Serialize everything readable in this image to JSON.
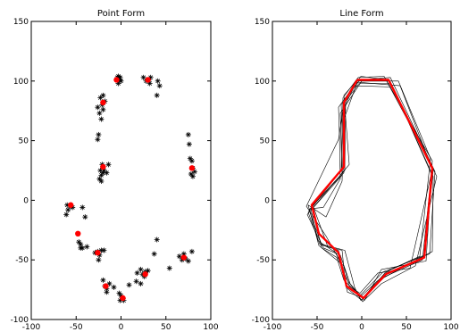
{
  "chart_data": [
    {
      "type": "scatter",
      "title": "Point Form",
      "xlabel": "",
      "ylabel": "",
      "xlim": [
        -100,
        100
      ],
      "ylim": [
        -100,
        150
      ],
      "xticks": [
        -100,
        -50,
        0,
        50,
        100
      ],
      "yticks": [
        -100,
        -50,
        0,
        50,
        100,
        150
      ],
      "grid": false,
      "colors": {
        "samples": "#000000",
        "mean": "#ff0000"
      },
      "series": [
        {
          "marker": "asterisk",
          "points": [
            [
              -3,
              104
            ],
            [
              -2,
              101
            ],
            [
              -1,
              103
            ],
            [
              0,
              100
            ],
            [
              -3,
              98
            ],
            [
              -4,
              103
            ],
            [
              25,
              103
            ],
            [
              28,
              100
            ],
            [
              31,
              101
            ],
            [
              33,
              103
            ],
            [
              32,
              98
            ],
            [
              41,
              100
            ],
            [
              43,
              96
            ],
            [
              40,
              88
            ],
            [
              -20,
              88
            ],
            [
              -23,
              86
            ],
            [
              -18,
              83
            ],
            [
              -21,
              80
            ],
            [
              -20,
              76
            ],
            [
              -26,
              78
            ],
            [
              -24,
              73
            ],
            [
              -22,
              68
            ],
            [
              -25,
              55
            ],
            [
              -26,
              51
            ],
            [
              -21,
              30
            ],
            [
              -23,
              25
            ],
            [
              -20,
              23
            ],
            [
              -22,
              21
            ],
            [
              -19,
              25
            ],
            [
              -16,
              23
            ],
            [
              -14,
              30
            ],
            [
              -22,
              16
            ],
            [
              -24,
              18
            ],
            [
              -60,
              -4
            ],
            [
              -56,
              -5
            ],
            [
              -59,
              -8
            ],
            [
              -61,
              -12
            ],
            [
              -54,
              -6
            ],
            [
              -43,
              -6
            ],
            [
              -40,
              -14
            ],
            [
              -47,
              -35
            ],
            [
              -45,
              -37
            ],
            [
              -43,
              -40
            ],
            [
              -38,
              -39
            ],
            [
              -45,
              -40
            ],
            [
              -29,
              -44
            ],
            [
              -26,
              -43
            ],
            [
              -24,
              -46
            ],
            [
              -22,
              -42
            ],
            [
              -19,
              -42
            ],
            [
              -25,
              -50
            ],
            [
              -20,
              -67
            ],
            [
              -18,
              -72
            ],
            [
              -16,
              -74
            ],
            [
              -13,
              -70
            ],
            [
              -16,
              -77
            ],
            [
              -8,
              -73
            ],
            [
              -2,
              -78
            ],
            [
              0,
              -80
            ],
            [
              2,
              -82
            ],
            [
              -1,
              -84
            ],
            [
              3,
              -84
            ],
            [
              9,
              -71
            ],
            [
              18,
              -61
            ],
            [
              22,
              -58
            ],
            [
              24,
              -62
            ],
            [
              27,
              -60
            ],
            [
              26,
              -64
            ],
            [
              22,
              -70
            ],
            [
              17,
              -68
            ],
            [
              30,
              -59
            ],
            [
              40,
              -33
            ],
            [
              37,
              -45
            ],
            [
              54,
              -57
            ],
            [
              65,
              -47
            ],
            [
              70,
              -45
            ],
            [
              68,
              -50
            ],
            [
              72,
              -49
            ],
            [
              75,
              -51
            ],
            [
              79,
              -43
            ],
            [
              75,
              55
            ],
            [
              76,
              47
            ],
            [
              77,
              35
            ],
            [
              79,
              33
            ],
            [
              80,
              27
            ],
            [
              78,
              22
            ],
            [
              82,
              24
            ],
            [
              80,
              20
            ]
          ]
        },
        {
          "marker": "dot",
          "points": [
            [
              -5,
              101
            ],
            [
              30,
              101
            ],
            [
              -20,
              82
            ],
            [
              -20,
              28
            ],
            [
              -56,
              -4
            ],
            [
              -48,
              -28
            ],
            [
              -26,
              -44
            ],
            [
              -17,
              -72
            ],
            [
              2,
              -82
            ],
            [
              27,
              -62
            ],
            [
              70,
              -48
            ],
            [
              79,
              27
            ]
          ]
        }
      ]
    },
    {
      "type": "line",
      "title": "Line Form",
      "xlabel": "",
      "ylabel": "",
      "xlim": [
        -100,
        100
      ],
      "ylim": [
        -100,
        150
      ],
      "xticks": [
        -100,
        -50,
        0,
        50,
        100
      ],
      "yticks": [
        -100,
        -50,
        0,
        50,
        100,
        150
      ],
      "grid": false,
      "colors": {
        "samples": "#000000",
        "mean": "#ff0000"
      },
      "series": [
        {
          "role": "sample",
          "points": [
            [
              -4,
              103
            ],
            [
              25,
              104
            ],
            [
              78,
              30
            ],
            [
              80,
              25
            ],
            [
              70,
              -46
            ],
            [
              27,
              -60
            ],
            [
              0,
              -84
            ],
            [
              -16,
              -74
            ],
            [
              -26,
              -42
            ],
            [
              -47,
              -37
            ],
            [
              -60,
              -10
            ],
            [
              -23,
              25
            ],
            [
              -21,
              86
            ],
            [
              -4,
              103
            ]
          ]
        },
        {
          "role": "sample",
          "points": [
            [
              -2,
              101
            ],
            [
              32,
              103
            ],
            [
              82,
              24
            ],
            [
              76,
              -45
            ],
            [
              24,
              -60
            ],
            [
              -2,
              -80
            ],
            [
              -20,
              -67
            ],
            [
              -28,
              -48
            ],
            [
              -45,
              -40
            ],
            [
              -56,
              -5
            ],
            [
              -20,
              23
            ],
            [
              -23,
              80
            ],
            [
              -2,
              101
            ]
          ]
        },
        {
          "role": "sample",
          "points": [
            [
              -6,
              100
            ],
            [
              28,
              100
            ],
            [
              79,
              33
            ],
            [
              72,
              -51
            ],
            [
              22,
              -58
            ],
            [
              3,
              -84
            ],
            [
              -13,
              -70
            ],
            [
              -24,
              -46
            ],
            [
              -43,
              -40
            ],
            [
              -61,
              -12
            ],
            [
              -14,
              30
            ],
            [
              -20,
              88
            ],
            [
              -6,
              100
            ]
          ]
        },
        {
          "role": "sample",
          "points": [
            [
              0,
              100
            ],
            [
              41,
              100
            ],
            [
              77,
              35
            ],
            [
              65,
              -47
            ],
            [
              30,
              -59
            ],
            [
              0,
              -80
            ],
            [
              -18,
              -72
            ],
            [
              -22,
              -42
            ],
            [
              -38,
              -39
            ],
            [
              -54,
              -6
            ],
            [
              -22,
              21
            ],
            [
              -24,
              73
            ],
            [
              0,
              100
            ]
          ]
        },
        {
          "role": "sample",
          "points": [
            [
              -3,
              98
            ],
            [
              33,
              98
            ],
            [
              80,
              20
            ],
            [
              79,
              -43
            ],
            [
              17,
              -68
            ],
            [
              -1,
              -84
            ],
            [
              -8,
              -73
            ],
            [
              -19,
              -42
            ],
            [
              -45,
              -37
            ],
            [
              -59,
              -8
            ],
            [
              -19,
              25
            ],
            [
              -18,
              83
            ],
            [
              -3,
              98
            ]
          ]
        },
        {
          "role": "sample",
          "points": [
            [
              -8,
              96
            ],
            [
              35,
              95
            ],
            [
              78,
              22
            ],
            [
              68,
              -50
            ],
            [
              26,
              -64
            ],
            [
              2,
              -82
            ],
            [
              -16,
              -77
            ],
            [
              -25,
              -50
            ],
            [
              -40,
              -30
            ],
            [
              -62,
              -5
            ],
            [
              -26,
              51
            ],
            [
              -21,
              76
            ],
            [
              -8,
              96
            ]
          ]
        },
        {
          "role": "sample",
          "points": [
            [
              -1,
              104
            ],
            [
              31,
              101
            ],
            [
              84,
              20
            ],
            [
              60,
              -55
            ],
            [
              22,
              -70
            ],
            [
              1,
              -85
            ],
            [
              -17,
              -66
            ],
            [
              -29,
              -44
            ],
            [
              -49,
              -34
            ],
            [
              -57,
              -7
            ],
            [
              -43,
              -6
            ],
            [
              -24,
              18
            ],
            [
              -25,
              55
            ],
            [
              -26,
              78
            ],
            [
              -1,
              104
            ]
          ]
        },
        {
          "role": "sample",
          "points": [
            [
              -5,
              99
            ],
            [
              43,
              96
            ],
            [
              79,
              26
            ],
            [
              54,
              -57
            ],
            [
              18,
              -61
            ],
            [
              -2,
              -78
            ],
            [
              -14,
              -72
            ],
            [
              -20,
              -55
            ],
            [
              -48,
              -38
            ],
            [
              -60,
              -4
            ],
            [
              -40,
              -14
            ],
            [
              -22,
              16
            ],
            [
              -20,
              68
            ],
            [
              -5,
              99
            ]
          ]
        },
        {
          "role": "mean",
          "points": [
            [
              -5,
              101
            ],
            [
              30,
              101
            ],
            [
              79,
              27
            ],
            [
              70,
              -48
            ],
            [
              27,
              -62
            ],
            [
              2,
              -82
            ],
            [
              -17,
              -72
            ],
            [
              -26,
              -44
            ],
            [
              -48,
              -28
            ],
            [
              -56,
              -4
            ],
            [
              -20,
              28
            ],
            [
              -20,
              82
            ],
            [
              -5,
              101
            ]
          ]
        }
      ]
    }
  ]
}
